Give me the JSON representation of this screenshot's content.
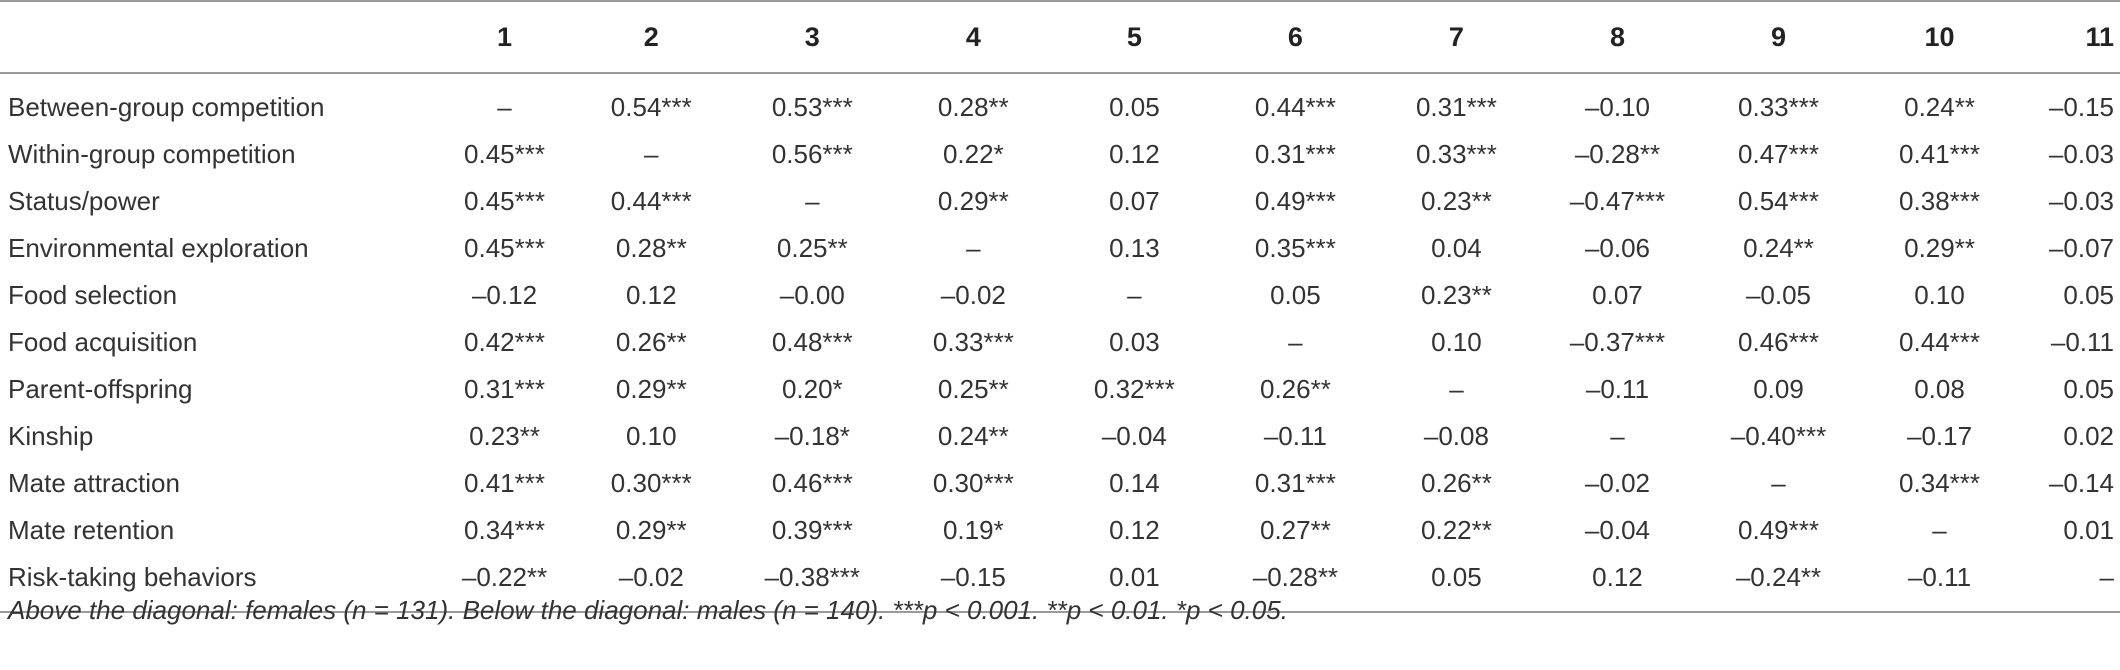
{
  "table": {
    "corner": "",
    "columns": [
      "1",
      "2",
      "3",
      "4",
      "5",
      "6",
      "7",
      "8",
      "9",
      "10",
      "11"
    ],
    "rows": [
      {
        "label": "Between-group competition",
        "cells": [
          "–",
          "0.54***",
          "0.53***",
          "0.28**",
          "0.05",
          "0.44***",
          "0.31***",
          "–0.10",
          "0.33***",
          "0.24**",
          "–0.15"
        ]
      },
      {
        "label": "Within-group competition",
        "cells": [
          "0.45***",
          "–",
          "0.56***",
          "0.22*",
          "0.12",
          "0.31***",
          "0.33***",
          "–0.28**",
          "0.47***",
          "0.41***",
          "–0.03"
        ]
      },
      {
        "label": "Status/power",
        "cells": [
          "0.45***",
          "0.44***",
          "–",
          "0.29**",
          "0.07",
          "0.49***",
          "0.23**",
          "–0.47***",
          "0.54***",
          "0.38***",
          "–0.03"
        ]
      },
      {
        "label": "Environmental exploration",
        "cells": [
          "0.45***",
          "0.28**",
          "0.25**",
          "–",
          "0.13",
          "0.35***",
          "0.04",
          "–0.06",
          "0.24**",
          "0.29**",
          "–0.07"
        ]
      },
      {
        "label": "Food selection",
        "cells": [
          "–0.12",
          "0.12",
          "–0.00",
          "–0.02",
          "–",
          "0.05",
          "0.23**",
          "0.07",
          "–0.05",
          "0.10",
          "0.05"
        ]
      },
      {
        "label": "Food acquisition",
        "cells": [
          "0.42***",
          "0.26**",
          "0.48***",
          "0.33***",
          "0.03",
          "–",
          "0.10",
          "–0.37***",
          "0.46***",
          "0.44***",
          "–0.11"
        ]
      },
      {
        "label": "Parent-offspring",
        "cells": [
          "0.31***",
          "0.29**",
          "0.20*",
          "0.25**",
          "0.32***",
          "0.26**",
          "–",
          "–0.11",
          "0.09",
          "0.08",
          "0.05"
        ]
      },
      {
        "label": "Kinship",
        "cells": [
          "0.23**",
          "0.10",
          "–0.18*",
          "0.24**",
          "–0.04",
          "–0.11",
          "–0.08",
          "–",
          "–0.40***",
          "–0.17",
          "0.02"
        ]
      },
      {
        "label": "Mate attraction",
        "cells": [
          "0.41***",
          "0.30***",
          "0.46***",
          "0.30***",
          "0.14",
          "0.31***",
          "0.26**",
          "–0.02",
          "–",
          "0.34***",
          "–0.14"
        ]
      },
      {
        "label": "Mate retention",
        "cells": [
          "0.34***",
          "0.29**",
          "0.39***",
          "0.19*",
          "0.12",
          "0.27**",
          "0.22**",
          "–0.04",
          "0.49***",
          "–",
          "0.01"
        ]
      },
      {
        "label": "Risk-taking behaviors",
        "cells": [
          "–0.22**",
          "–0.02",
          "–0.38***",
          "–0.15",
          "0.01",
          "–0.28**",
          "0.05",
          "0.12",
          "–0.24**",
          "–0.11",
          "–"
        ]
      }
    ]
  },
  "note": "Above the diagonal: females (n = 131). Below the diagonal: males (n = 140). ***p < 0.001. **p < 0.01. *p < 0.05."
}
